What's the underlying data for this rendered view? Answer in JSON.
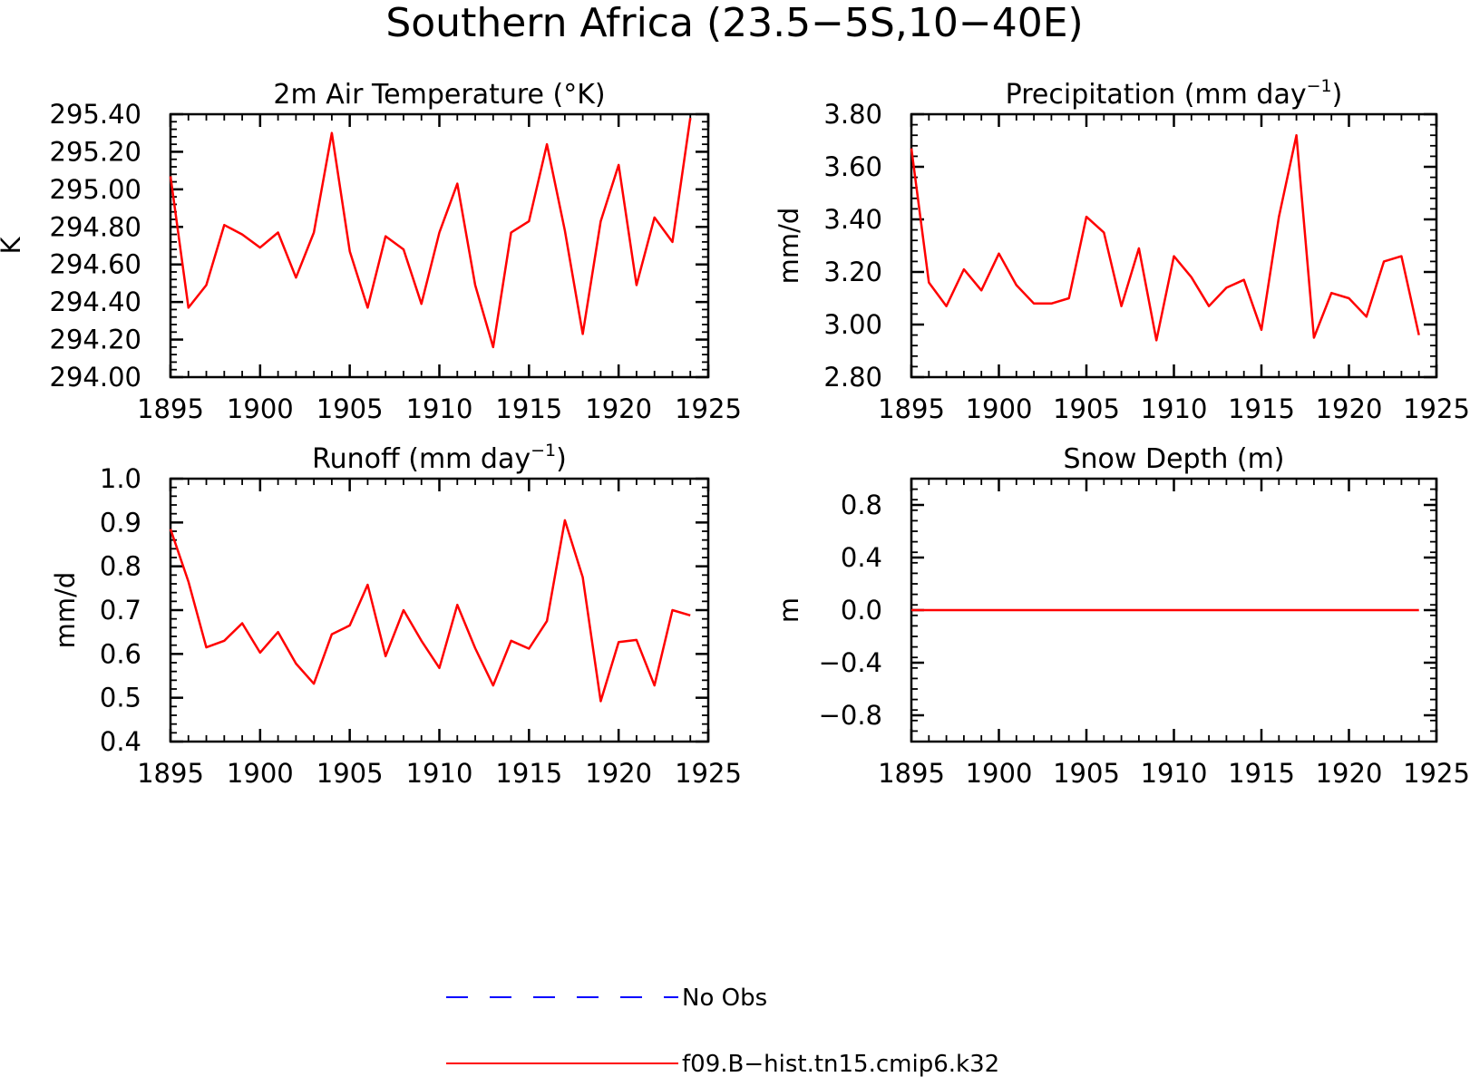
{
  "title": "Southern Africa (23.5−5S,10−40E)",
  "colors": {
    "model": "#ff0000",
    "obs": "#0000ff"
  },
  "legend": [
    {
      "label": "No Obs",
      "style": "dashed",
      "color": "#0000ff"
    },
    {
      "label": "f09.B−hist.tn15.cmip6.k32",
      "style": "solid",
      "color": "#ff0000"
    }
  ],
  "chart_data": [
    {
      "type": "line",
      "title": "2m Air Temperature (°K)",
      "ylabel": "K",
      "xlim": [
        1895,
        1925
      ],
      "ylim": [
        294.0,
        295.4
      ],
      "xticks": [
        1895,
        1900,
        1905,
        1910,
        1915,
        1920,
        1925
      ],
      "xtick_labels": [
        "1895",
        "1900",
        "1905",
        "1910",
        "1915",
        "1920",
        "1925"
      ],
      "yticks": [
        294.0,
        294.2,
        294.4,
        294.6,
        294.8,
        295.0,
        295.2,
        295.4
      ],
      "ytick_labels": [
        "294.00",
        "294.20",
        "294.40",
        "294.60",
        "294.80",
        "295.00",
        "295.20",
        "295.40"
      ],
      "series": [
        {
          "color": "#ff0000",
          "x": [
            1895,
            1896,
            1897,
            1898,
            1899,
            1900,
            1901,
            1902,
            1903,
            1904,
            1905,
            1906,
            1907,
            1908,
            1909,
            1910,
            1911,
            1912,
            1913,
            1914,
            1915,
            1916,
            1917,
            1918,
            1919,
            1920,
            1921,
            1922,
            1923,
            1924
          ],
          "y": [
            295.07,
            294.37,
            294.49,
            294.81,
            294.76,
            294.69,
            294.77,
            294.53,
            294.77,
            295.3,
            294.67,
            294.37,
            294.75,
            294.68,
            294.39,
            294.77,
            295.03,
            294.49,
            294.16,
            294.77,
            294.83,
            295.24,
            294.78,
            294.23,
            294.83,
            295.13,
            294.49,
            294.85,
            294.72,
            295.38
          ]
        }
      ]
    },
    {
      "type": "line",
      "title": "Precipitation (mm day",
      "title_sup": "−1",
      "title_end": ")",
      "ylabel": "mm/d",
      "xlim": [
        1895,
        1925
      ],
      "ylim": [
        2.8,
        3.8
      ],
      "xticks": [
        1895,
        1900,
        1905,
        1910,
        1915,
        1920,
        1925
      ],
      "xtick_labels": [
        "1895",
        "1900",
        "1905",
        "1910",
        "1915",
        "1920",
        "1925"
      ],
      "yticks": [
        2.8,
        3.0,
        3.2,
        3.4,
        3.6,
        3.8
      ],
      "ytick_labels": [
        "2.80",
        "3.00",
        "3.20",
        "3.40",
        "3.60",
        "3.80"
      ],
      "series": [
        {
          "color": "#ff0000",
          "x": [
            1895,
            1896,
            1897,
            1898,
            1899,
            1900,
            1901,
            1902,
            1903,
            1904,
            1905,
            1906,
            1907,
            1908,
            1909,
            1910,
            1911,
            1912,
            1913,
            1914,
            1915,
            1916,
            1917,
            1918,
            1919,
            1920,
            1921,
            1922,
            1923,
            1924
          ],
          "y": [
            3.67,
            3.16,
            3.07,
            3.21,
            3.13,
            3.27,
            3.15,
            3.08,
            3.08,
            3.1,
            3.41,
            3.35,
            3.07,
            3.29,
            2.94,
            3.26,
            3.18,
            3.07,
            3.14,
            3.17,
            2.98,
            3.41,
            3.72,
            2.95,
            3.12,
            3.1,
            3.03,
            3.24,
            3.26,
            2.96
          ]
        }
      ]
    },
    {
      "type": "line",
      "title": "Runoff (mm day",
      "title_sup": "−1",
      "title_end": ")",
      "ylabel": "mm/d",
      "xlim": [
        1895,
        1925
      ],
      "ylim": [
        0.4,
        1.0
      ],
      "xticks": [
        1895,
        1900,
        1905,
        1910,
        1915,
        1920,
        1925
      ],
      "xtick_labels": [
        "1895",
        "1900",
        "1905",
        "1910",
        "1915",
        "1920",
        "1925"
      ],
      "yticks": [
        0.4,
        0.5,
        0.6,
        0.7,
        0.8,
        0.9,
        1.0
      ],
      "ytick_labels": [
        "0.4",
        "0.5",
        "0.6",
        "0.7",
        "0.8",
        "0.9",
        "1.0"
      ],
      "series": [
        {
          "color": "#ff0000",
          "x": [
            1895,
            1896,
            1897,
            1898,
            1899,
            1900,
            1901,
            1902,
            1903,
            1904,
            1905,
            1906,
            1907,
            1908,
            1909,
            1910,
            1911,
            1912,
            1913,
            1914,
            1915,
            1916,
            1917,
            1918,
            1919,
            1920,
            1921,
            1922,
            1923,
            1924
          ],
          "y": [
            0.885,
            0.765,
            0.615,
            0.63,
            0.67,
            0.603,
            0.65,
            0.578,
            0.532,
            0.645,
            0.665,
            0.758,
            0.595,
            0.7,
            0.63,
            0.568,
            0.712,
            0.613,
            0.528,
            0.63,
            0.612,
            0.675,
            0.905,
            0.775,
            0.492,
            0.627,
            0.632,
            0.528,
            0.7,
            0.688
          ]
        }
      ]
    },
    {
      "type": "line",
      "title": "Snow Depth (m)",
      "ylabel": "m",
      "xlim": [
        1895,
        1925
      ],
      "ylim": [
        -1.0,
        1.0
      ],
      "xticks": [
        1895,
        1900,
        1905,
        1910,
        1915,
        1920,
        1925
      ],
      "xtick_labels": [
        "1895",
        "1900",
        "1905",
        "1910",
        "1915",
        "1920",
        "1925"
      ],
      "yticks": [
        -0.8,
        -0.4,
        0.0,
        0.4,
        0.8
      ],
      "ytick_labels": [
        "−0.8",
        "−0.4",
        "0.0",
        "0.4",
        "0.8"
      ],
      "series": [
        {
          "color": "#ff0000",
          "x": [
            1895,
            1924
          ],
          "y": [
            0.0,
            0.0
          ]
        }
      ]
    }
  ]
}
